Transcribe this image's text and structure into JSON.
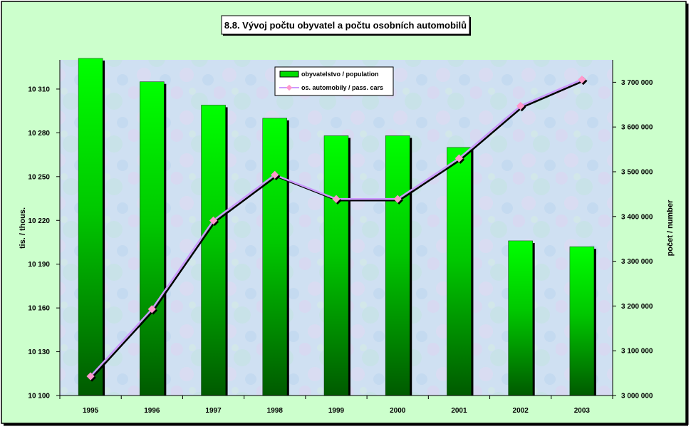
{
  "chart_data": {
    "type": "bar+line",
    "title": "8.8. Vývoj počtu obyvatel a počtu osobních automobilů",
    "categories": [
      "1995",
      "1996",
      "1997",
      "1998",
      "1999",
      "2000",
      "2001",
      "2002",
      "2003"
    ],
    "y_left_label": "tis. / thous.",
    "y_right_label": "počet / number",
    "y_left_range": [
      10100,
      10330
    ],
    "y_right_range": [
      3000000,
      3750000
    ],
    "y_left_ticks": [
      10100,
      10130,
      10160,
      10190,
      10220,
      10250,
      10280,
      10310
    ],
    "y_left_tick_labels": [
      "10 100",
      "10 130",
      "10 160",
      "10 190",
      "10 220",
      "10 250",
      "10 280",
      "10 310"
    ],
    "y_right_ticks": [
      3000000,
      3100000,
      3200000,
      3300000,
      3400000,
      3500000,
      3600000,
      3700000
    ],
    "y_right_tick_labels": [
      "3 000 000",
      "3 100 000",
      "3 200 000",
      "3 300 000",
      "3 400 000",
      "3 500 000",
      "3 600 000",
      "3 700 000"
    ],
    "series": [
      {
        "name": "obyvatelstvo / population",
        "type": "bar",
        "axis": "left",
        "color": "#00ff00",
        "values": [
          10331,
          10315,
          10299,
          10290,
          10278,
          10278,
          10270,
          10206,
          10202
        ]
      },
      {
        "name": "os. automobily / pass. cars",
        "type": "line",
        "axis": "right",
        "color": "#cc99ff",
        "marker_color": "#ff99cc",
        "values": [
          3043000,
          3193000,
          3391000,
          3493000,
          3439000,
          3439000,
          3530000,
          3647000,
          3706000
        ]
      }
    ],
    "legend_position": "top-center",
    "grid": false
  }
}
